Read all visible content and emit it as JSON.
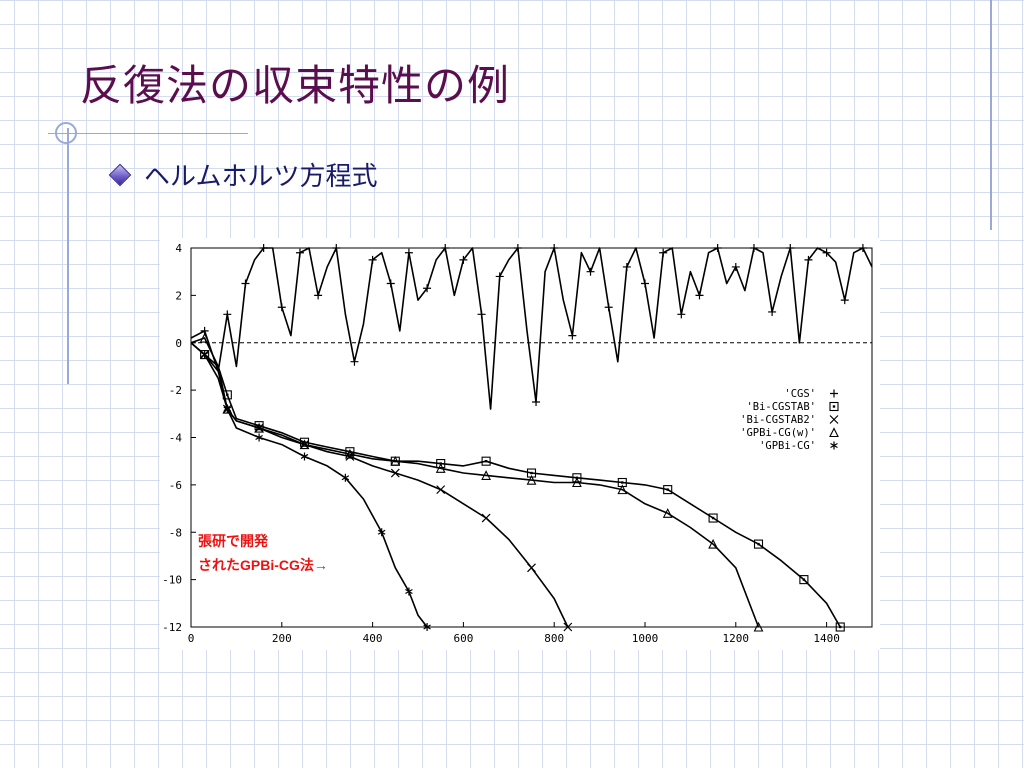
{
  "slide": {
    "title": "反復法の収束特性の例",
    "bullet": "ヘルムホルツ方程式"
  },
  "colors": {
    "title": "#5a0e4e",
    "bullet_text": "#1a1a6a",
    "annotation": "#ee1111",
    "grid_lines": "#d6dcef",
    "decor_lines": "#9aa9d6"
  },
  "chart_data": {
    "type": "line",
    "xlim": [
      0,
      1500
    ],
    "ylim": [
      -12,
      4
    ],
    "x_ticks": [
      0,
      200,
      400,
      600,
      800,
      1000,
      1200,
      1400
    ],
    "y_ticks": [
      4,
      2,
      0,
      -2,
      -4,
      -6,
      -8,
      -10,
      -12
    ],
    "reference_line": {
      "y": 0,
      "style": "dashed"
    },
    "legend_placement": "right",
    "series": [
      {
        "name": "'CGS'",
        "marker": "plus",
        "x": [
          0,
          30,
          60,
          80,
          100,
          120,
          140,
          160,
          180,
          200,
          220,
          240,
          260,
          280,
          300,
          320,
          340,
          360,
          380,
          400,
          420,
          440,
          460,
          480,
          500,
          520,
          540,
          560,
          580,
          600,
          620,
          640,
          660,
          680,
          700,
          720,
          740,
          760,
          780,
          800,
          820,
          840,
          860,
          880,
          900,
          920,
          940,
          960,
          980,
          1000,
          1020,
          1040,
          1060,
          1080,
          1100,
          1120,
          1140,
          1160,
          1180,
          1200,
          1220,
          1240,
          1260,
          1280,
          1300,
          1320,
          1340,
          1360,
          1380,
          1400,
          1420,
          1440,
          1460,
          1480,
          1500
        ],
        "values": [
          0.2,
          0.5,
          -1.2,
          1.2,
          -1.0,
          2.5,
          3.5,
          4.0,
          4.0,
          1.5,
          0.3,
          3.8,
          4.0,
          2.0,
          3.2,
          4.0,
          1.2,
          -0.8,
          0.8,
          3.5,
          3.8,
          2.5,
          0.5,
          3.8,
          1.8,
          2.3,
          3.5,
          4.0,
          2.0,
          3.5,
          4.0,
          1.2,
          -2.8,
          2.8,
          3.5,
          4.0,
          0.5,
          -2.5,
          3.0,
          4.0,
          1.8,
          0.3,
          3.8,
          3.0,
          4.0,
          1.5,
          -0.8,
          3.2,
          4.0,
          2.5,
          0.2,
          3.8,
          4.0,
          1.2,
          3.0,
          2.0,
          3.8,
          4.0,
          2.5,
          3.2,
          2.2,
          4.0,
          3.8,
          1.3,
          2.8,
          4.0,
          0.0,
          3.5,
          4.0,
          3.8,
          3.4,
          1.8,
          3.8,
          4.0,
          3.2
        ]
      },
      {
        "name": "'Bi-CGSTAB'",
        "marker": "square",
        "x": [
          0,
          30,
          60,
          80,
          100,
          150,
          200,
          250,
          300,
          350,
          400,
          450,
          500,
          550,
          600,
          650,
          700,
          750,
          800,
          850,
          900,
          950,
          1000,
          1050,
          1100,
          1150,
          1200,
          1250,
          1300,
          1350,
          1400,
          1430
        ],
        "values": [
          0,
          -0.5,
          -1.0,
          -2.2,
          -3.2,
          -3.5,
          -3.8,
          -4.2,
          -4.4,
          -4.6,
          -4.8,
          -5.0,
          -5.0,
          -5.1,
          -5.2,
          -5.0,
          -5.3,
          -5.5,
          -5.6,
          -5.7,
          -5.8,
          -5.9,
          -6.0,
          -6.2,
          -6.8,
          -7.4,
          -8.0,
          -8.5,
          -9.2,
          -10.0,
          -11.0,
          -12.0
        ]
      },
      {
        "name": "'Bi-CGSTAB2'",
        "marker": "x",
        "x": [
          0,
          30,
          60,
          80,
          100,
          150,
          200,
          250,
          300,
          350,
          400,
          450,
          500,
          550,
          600,
          650,
          700,
          750,
          800,
          830
        ],
        "values": [
          0,
          -0.5,
          -1.5,
          -2.8,
          -3.3,
          -3.6,
          -3.9,
          -4.3,
          -4.6,
          -4.8,
          -5.2,
          -5.5,
          -5.8,
          -6.2,
          -6.8,
          -7.4,
          -8.3,
          -9.5,
          -10.8,
          -12.0
        ]
      },
      {
        "name": "'GPBi-CG(w)'",
        "marker": "triangle",
        "x": [
          0,
          30,
          60,
          80,
          100,
          150,
          200,
          250,
          300,
          350,
          400,
          450,
          500,
          550,
          600,
          650,
          700,
          750,
          800,
          850,
          900,
          950,
          1000,
          1050,
          1100,
          1150,
          1200,
          1250
        ],
        "values": [
          0,
          0.2,
          -1.0,
          -2.8,
          -3.3,
          -3.6,
          -4.0,
          -4.3,
          -4.5,
          -4.7,
          -4.9,
          -5.0,
          -5.1,
          -5.3,
          -5.5,
          -5.6,
          -5.7,
          -5.8,
          -5.9,
          -5.9,
          -6.0,
          -6.2,
          -6.8,
          -7.2,
          -7.8,
          -8.5,
          -9.5,
          -12.0
        ]
      },
      {
        "name": "'GPBi-CG'",
        "marker": "asterisk",
        "x": [
          0,
          30,
          60,
          80,
          100,
          150,
          200,
          250,
          300,
          340,
          380,
          420,
          450,
          480,
          500,
          520
        ],
        "values": [
          0,
          -0.5,
          -1.2,
          -2.8,
          -3.6,
          -4.0,
          -4.3,
          -4.8,
          -5.2,
          -5.7,
          -6.6,
          -8.0,
          -9.5,
          -10.5,
          -11.5,
          -12.0
        ]
      }
    ],
    "annotation": {
      "line1": "張研で開発",
      "line2": "されたGPBi-CG法→"
    }
  }
}
